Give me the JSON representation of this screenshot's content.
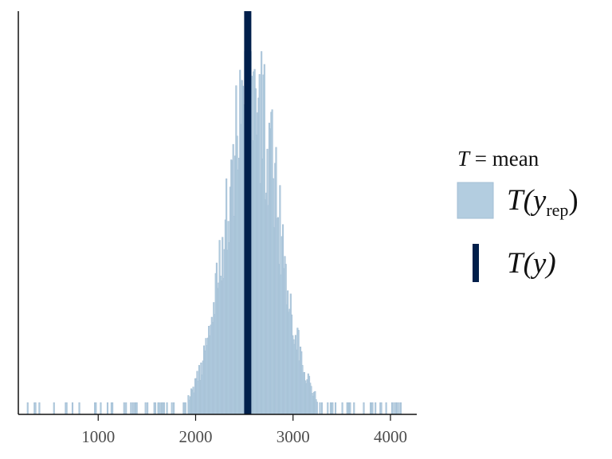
{
  "chart_data": {
    "type": "histogram",
    "x_axis": {
      "range": [
        180,
        4270
      ],
      "ticks": [
        1000,
        2000,
        3000,
        4000
      ],
      "tick_labels": [
        "1000",
        "2000",
        "3000",
        "4000"
      ]
    },
    "replicated_stat": {
      "name": "T(y_rep)",
      "mean": 2580,
      "sd": 270,
      "tail_min": 270,
      "tail_max": 4120,
      "count_max": 1.0
    },
    "observed_stat": {
      "name": "T(y)",
      "value": 2535
    },
    "colors": {
      "rep_fill": "#b3cde0",
      "rep_edge": "#a3bed4",
      "observed": "#011f4b",
      "axis": "#111111"
    },
    "legend": {
      "title_symbol": "T",
      "title_rest": " = mean",
      "rep_main": "T(y",
      "rep_sub": "rep",
      "rep_close": ")",
      "obs_main": "T(y)"
    }
  }
}
